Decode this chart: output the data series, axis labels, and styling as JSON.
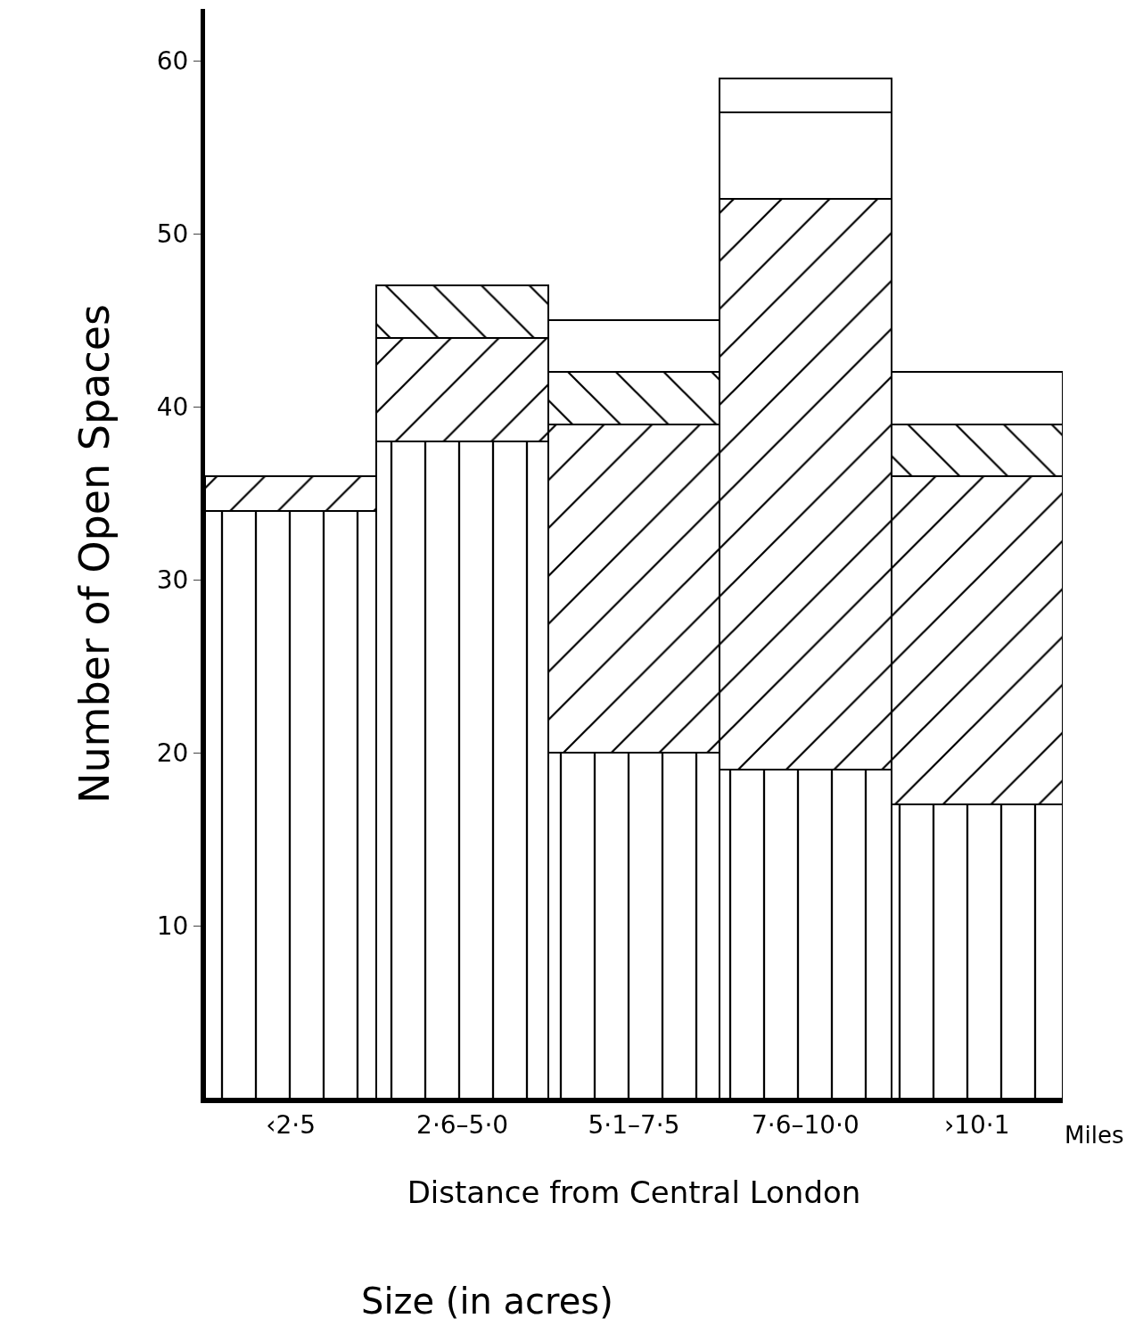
{
  "chart_data": {
    "type": "bar",
    "stacked": true,
    "xlabel": "Distance from Central London",
    "ylabel": "Number of Open Spaces",
    "categories": [
      "‹2·5",
      "2·6–5·0",
      "5·1–7·5",
      "7·6–10·0",
      "›10·1"
    ],
    "series": [
      {
        "color": "#000000",
        "values": [
          34,
          38,
          20,
          19,
          17
        ]
      },
      {
        "color": "#000000",
        "values": [
          2,
          6,
          19,
          33,
          19
        ]
      },
      {
        "color": "#000000",
        "values": [
          null,
          3,
          3,
          null,
          3
        ]
      },
      {
        "color": "#ffffff",
        "values": [
          null,
          null,
          3,
          5,
          3
        ]
      },
      {
        "color": "#ffffff",
        "values": [
          null,
          null,
          null,
          2,
          null
        ]
      }
    ],
    "ylim": [
      0,
      63
    ],
    "yticks": [
      10,
      20,
      30,
      40,
      50,
      60
    ],
    "legend": false,
    "annotations": [
      "Miles",
      "Size (in acres)"
    ]
  }
}
